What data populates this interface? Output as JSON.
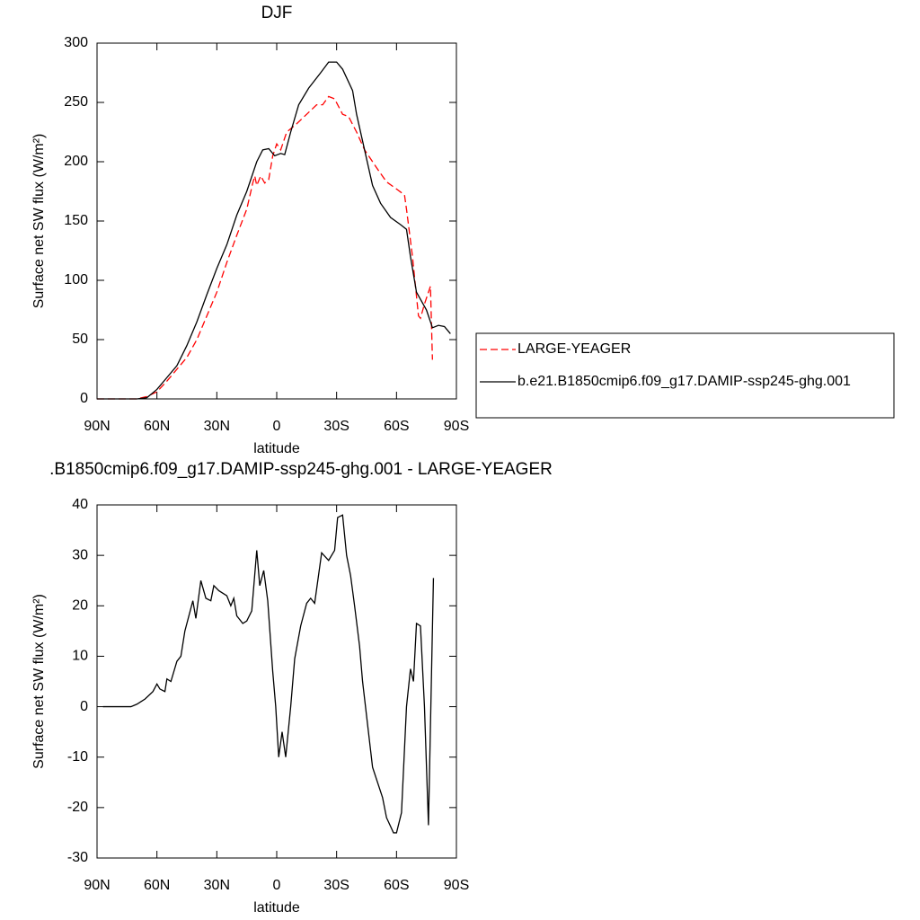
{
  "chart_data": [
    {
      "type": "line",
      "title": "DJF",
      "xlabel": "latitude",
      "ylabel": "Surface net SW flux (W/m²)",
      "xlim": [
        90,
        -90
      ],
      "xticks": [
        {
          "value": 90,
          "label": "90N"
        },
        {
          "value": 60,
          "label": "60N"
        },
        {
          "value": 30,
          "label": "30N"
        },
        0,
        {
          "value": -30,
          "label": "30S"
        },
        {
          "value": -60,
          "label": "60S"
        },
        {
          "value": -90,
          "label": "90S"
        }
      ],
      "ylim": [
        0,
        300
      ],
      "yticks": [
        0,
        50,
        100,
        150,
        200,
        250,
        300
      ],
      "legend": "right",
      "series": [
        {
          "name": "LARGE-YEAGER",
          "color": "#ff0000",
          "line_style": "dashed",
          "x": [
            90,
            70,
            65,
            60,
            55,
            50,
            45,
            40,
            35,
            30,
            25,
            20,
            15,
            12,
            11,
            10,
            8,
            6,
            4,
            2,
            0,
            -2,
            -5,
            -10,
            -15,
            -20,
            -23,
            -26,
            -29,
            -33,
            -36,
            -40,
            -44,
            -50,
            -55,
            -60,
            -64,
            -65,
            -68,
            -71,
            -72,
            -74,
            -77,
            -78
          ],
          "values": [
            0,
            0,
            2,
            6,
            15,
            25,
            35,
            50,
            70,
            90,
            115,
            138,
            160,
            182,
            188,
            180,
            188,
            182,
            185,
            205,
            215,
            210,
            225,
            232,
            240,
            248,
            248,
            255,
            253,
            240,
            238,
            225,
            210,
            195,
            183,
            177,
            172,
            160,
            120,
            70,
            68,
            80,
            95,
            33
          ]
        },
        {
          "name": "b.e21.B1850cmip6.f09_g17.DAMIP-ssp245-ghg.001",
          "color": "#000000",
          "line_style": "solid",
          "x": [
            90,
            70,
            65,
            60,
            55,
            50,
            45,
            40,
            35,
            30,
            25,
            20,
            15,
            10,
            7,
            4,
            1,
            -2,
            -4,
            -7,
            -11,
            -16,
            -22,
            -26,
            -30,
            -33,
            -38,
            -40,
            -44,
            -48,
            -52,
            -57,
            -62,
            -65,
            -67,
            -70,
            -75,
            -78,
            -81,
            -84,
            -87
          ],
          "values": [
            0,
            0,
            1,
            8,
            18,
            28,
            45,
            65,
            88,
            110,
            130,
            155,
            175,
            200,
            210,
            211,
            205,
            207,
            206,
            225,
            248,
            262,
            275,
            284,
            284,
            278,
            260,
            240,
            210,
            180,
            165,
            153,
            147,
            143,
            120,
            90,
            75,
            60,
            62,
            61,
            55
          ]
        }
      ]
    },
    {
      "type": "line",
      "title": ".B1850cmip6.f09_g17.DAMIP-ssp245-ghg.001 - LARGE-YEAGER",
      "xlabel": "latitude",
      "ylabel": "Surface net SW flux (W/m²)",
      "xlim": [
        90,
        -90
      ],
      "xticks": [
        {
          "value": 90,
          "label": "90N"
        },
        {
          "value": 60,
          "label": "60N"
        },
        {
          "value": 30,
          "label": "30N"
        },
        0,
        {
          "value": -30,
          "label": "30S"
        },
        {
          "value": -60,
          "label": "60S"
        },
        {
          "value": -90,
          "label": "90S"
        }
      ],
      "ylim": [
        -30,
        40
      ],
      "yticks": [
        -30,
        -20,
        -10,
        0,
        10,
        20,
        30,
        40
      ],
      "series": [
        {
          "color": "#000000",
          "line_style": "solid",
          "x": [
            87,
            73,
            70,
            68,
            66,
            62,
            60,
            58.5,
            56,
            55,
            53,
            50,
            48,
            46,
            42,
            40.5,
            38,
            35.5,
            33,
            31.5,
            29,
            25,
            23,
            21.5,
            20,
            17,
            15,
            12.5,
            10,
            8.5,
            6.5,
            4.5,
            2,
            0.5,
            -1,
            -2.7,
            -4.5,
            -7,
            -9,
            -12,
            -15,
            -17,
            -19,
            -22.5,
            -26,
            -29,
            -30.5,
            -33,
            -35,
            -37,
            -39,
            -41.5,
            -43,
            -48,
            -50.5,
            -53,
            -55,
            -58.5,
            -60,
            -62.5,
            -65,
            -67,
            -68.5,
            -70,
            -72,
            -74,
            -76,
            -78.5
          ],
          "values": [
            0,
            0,
            0.5,
            1,
            1.5,
            3,
            4.5,
            3.5,
            3,
            5.5,
            5,
            9,
            10,
            15,
            21,
            17.5,
            25,
            21.5,
            21,
            24,
            23,
            22,
            20,
            21.5,
            18,
            16.5,
            17,
            19,
            31,
            24,
            27,
            21,
            7,
            0,
            -10,
            -5,
            -10,
            0,
            9.5,
            16,
            20.5,
            21.5,
            20.5,
            30.5,
            29,
            31,
            37.5,
            38,
            30,
            26,
            20,
            12,
            5,
            -12,
            -15,
            -18,
            -22,
            -25,
            -25,
            -21,
            0,
            7.5,
            5,
            16.5,
            16,
            0,
            -23.5,
            25.5
          ]
        }
      ]
    }
  ]
}
